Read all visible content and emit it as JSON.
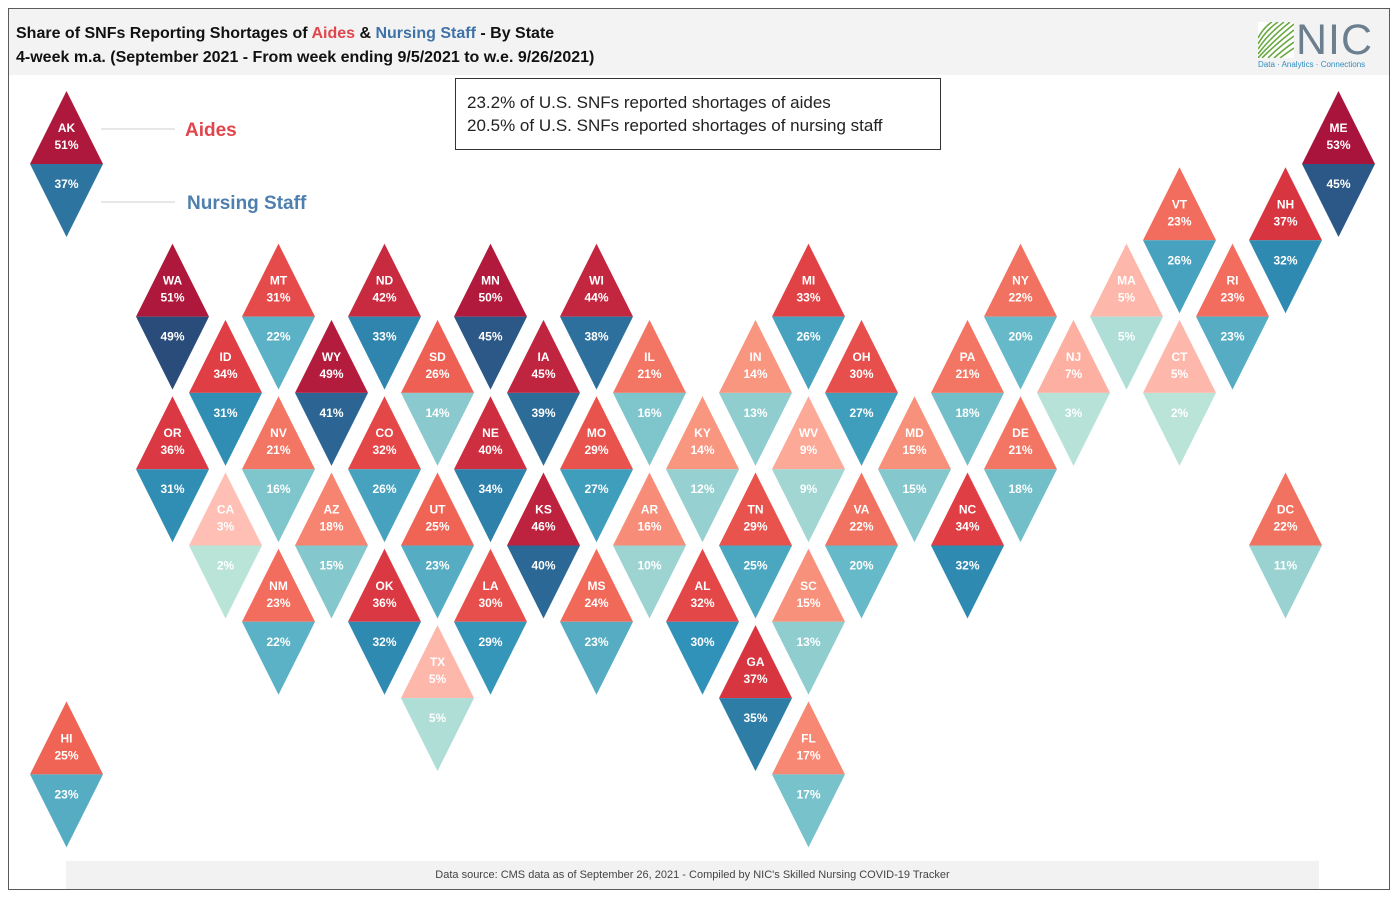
{
  "title": {
    "part1": "Share of SNFs Reporting Shortages of ",
    "aides": "Aides",
    "amp": " & ",
    "nursing": "Nursing Staff",
    "part2": " - By State",
    "subtitle": "4-week m.a. (September 2021 - From week ending 9/5/2021 to w.e. 9/26/2021)"
  },
  "logo": {
    "text": "NIC",
    "tagline": "Data · Analytics · Connections"
  },
  "summary": {
    "line1": "23.2% of U.S. SNFs reported shortages of aides",
    "line2": "20.5% of U.S. SNFs reported shortages of nursing staff"
  },
  "legend": {
    "aides": "Aides",
    "nursing": "Nursing Staff"
  },
  "footer": "Data source: CMS data as of September 26, 2021 -  Compiled by NIC's Skilled Nursing COVID-19 Tracker",
  "chart_data": {
    "type": "tile-map",
    "title": "Share of SNFs Reporting Shortages of Aides & Nursing Staff - By State",
    "unit": "%",
    "measures": [
      "Aides",
      "Nursing Staff"
    ],
    "states": [
      {
        "state": "AK",
        "col": 0,
        "row": 0,
        "aides": 51,
        "nursing": 37
      },
      {
        "state": "ME",
        "col": 12,
        "row": 0,
        "aides": 53,
        "nursing": 45
      },
      {
        "state": "VT",
        "col": 10,
        "row": 1,
        "aides": 23,
        "nursing": 26
      },
      {
        "state": "NH",
        "col": 11,
        "row": 1,
        "aides": 37,
        "nursing": 32
      },
      {
        "state": "WA",
        "col": 1,
        "row": 2,
        "aides": 51,
        "nursing": 49
      },
      {
        "state": "MT",
        "col": 2,
        "row": 2,
        "aides": 31,
        "nursing": 22
      },
      {
        "state": "ND",
        "col": 3,
        "row": 2,
        "aides": 42,
        "nursing": 33
      },
      {
        "state": "MN",
        "col": 4,
        "row": 2,
        "aides": 50,
        "nursing": 45
      },
      {
        "state": "WI",
        "col": 5,
        "row": 2,
        "aides": 44,
        "nursing": 38
      },
      {
        "state": "MI",
        "col": 7,
        "row": 2,
        "aides": 33,
        "nursing": 26
      },
      {
        "state": "NY",
        "col": 9,
        "row": 2,
        "aides": 22,
        "nursing": 20
      },
      {
        "state": "MA",
        "col": 10,
        "row": 2,
        "aides": 5,
        "nursing": 5
      },
      {
        "state": "RI",
        "col": 11,
        "row": 2,
        "aides": 23,
        "nursing": 23
      },
      {
        "state": "ID",
        "col": 1,
        "row": 3,
        "aides": 34,
        "nursing": 31
      },
      {
        "state": "WY",
        "col": 2,
        "row": 3,
        "aides": 49,
        "nursing": 41
      },
      {
        "state": "SD",
        "col": 3,
        "row": 3,
        "aides": 26,
        "nursing": 14
      },
      {
        "state": "IA",
        "col": 4,
        "row": 3,
        "aides": 45,
        "nursing": 39
      },
      {
        "state": "IL",
        "col": 5,
        "row": 3,
        "aides": 21,
        "nursing": 16
      },
      {
        "state": "IN",
        "col": 6,
        "row": 3,
        "aides": 14,
        "nursing": 13
      },
      {
        "state": "OH",
        "col": 7,
        "row": 3,
        "aides": 30,
        "nursing": 27
      },
      {
        "state": "PA",
        "col": 8,
        "row": 3,
        "aides": 21,
        "nursing": 18
      },
      {
        "state": "NJ",
        "col": 9,
        "row": 3,
        "aides": 7,
        "nursing": 3
      },
      {
        "state": "CT",
        "col": 10,
        "row": 3,
        "aides": 5,
        "nursing": 2
      },
      {
        "state": "OR",
        "col": 1,
        "row": 4,
        "aides": 36,
        "nursing": 31
      },
      {
        "state": "NV",
        "col": 2,
        "row": 4,
        "aides": 21,
        "nursing": 16
      },
      {
        "state": "CO",
        "col": 3,
        "row": 4,
        "aides": 32,
        "nursing": 26
      },
      {
        "state": "NE",
        "col": 4,
        "row": 4,
        "aides": 40,
        "nursing": 34
      },
      {
        "state": "MO",
        "col": 5,
        "row": 4,
        "aides": 29,
        "nursing": 27
      },
      {
        "state": "KY",
        "col": 6,
        "row": 4,
        "aides": 14,
        "nursing": 12
      },
      {
        "state": "WV",
        "col": 7,
        "row": 4,
        "aides": 9,
        "nursing": 9
      },
      {
        "state": "MD",
        "col": 8,
        "row": 4,
        "aides": 15,
        "nursing": 15
      },
      {
        "state": "DE",
        "col": 9,
        "row": 4,
        "aides": 21,
        "nursing": 18
      },
      {
        "state": "CA",
        "col": 1,
        "row": 5,
        "aides": 3,
        "nursing": 2
      },
      {
        "state": "AZ",
        "col": 2,
        "row": 5,
        "aides": 18,
        "nursing": 15
      },
      {
        "state": "UT",
        "col": 3,
        "row": 5,
        "aides": 25,
        "nursing": 23
      },
      {
        "state": "KS",
        "col": 4,
        "row": 5,
        "aides": 46,
        "nursing": 40
      },
      {
        "state": "AR",
        "col": 5,
        "row": 5,
        "aides": 16,
        "nursing": 10
      },
      {
        "state": "TN",
        "col": 6,
        "row": 5,
        "aides": 29,
        "nursing": 25
      },
      {
        "state": "VA",
        "col": 7,
        "row": 5,
        "aides": 22,
        "nursing": 20
      },
      {
        "state": "NC",
        "col": 8,
        "row": 5,
        "aides": 34,
        "nursing": 32
      },
      {
        "state": "DC",
        "col": 11,
        "row": 5,
        "aides": 22,
        "nursing": 11
      },
      {
        "state": "NM",
        "col": 2,
        "row": 6,
        "aides": 23,
        "nursing": 22
      },
      {
        "state": "OK",
        "col": 3,
        "row": 6,
        "aides": 36,
        "nursing": 32
      },
      {
        "state": "LA",
        "col": 4,
        "row": 6,
        "aides": 30,
        "nursing": 29
      },
      {
        "state": "MS",
        "col": 5,
        "row": 6,
        "aides": 24,
        "nursing": 23
      },
      {
        "state": "AL",
        "col": 6,
        "row": 6,
        "aides": 32,
        "nursing": 30
      },
      {
        "state": "SC",
        "col": 7,
        "row": 6,
        "aides": 15,
        "nursing": 13
      },
      {
        "state": "TX",
        "col": 3,
        "row": 7,
        "aides": 5,
        "nursing": 5
      },
      {
        "state": "GA",
        "col": 6,
        "row": 7,
        "aides": 37,
        "nursing": 35
      },
      {
        "state": "HI",
        "col": 0,
        "row": 8,
        "aides": 25,
        "nursing": 23
      },
      {
        "state": "FL",
        "col": 7,
        "row": 8,
        "aides": 17,
        "nursing": 17
      }
    ]
  }
}
